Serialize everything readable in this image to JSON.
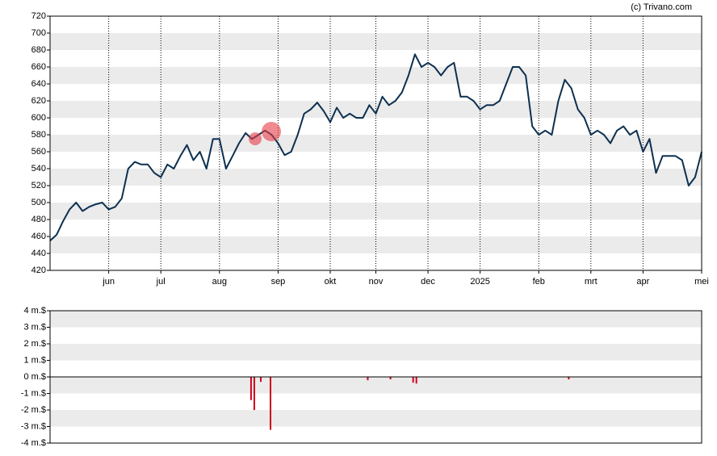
{
  "source": "(c) Trivano.com",
  "chart_data": [
    {
      "type": "line",
      "categories": [
        null,
        null,
        null,
        null,
        null,
        null,
        null,
        null,
        null,
        "jun",
        null,
        null,
        null,
        null,
        null,
        null,
        null,
        "jul",
        null,
        null,
        null,
        null,
        null,
        null,
        null,
        null,
        "aug",
        null,
        null,
        null,
        null,
        null,
        null,
        null,
        null,
        "sep",
        null,
        null,
        null,
        null,
        null,
        null,
        null,
        "okt",
        null,
        null,
        null,
        null,
        null,
        null,
        "nov",
        null,
        null,
        null,
        null,
        null,
        null,
        null,
        "dec",
        null,
        null,
        null,
        null,
        null,
        null,
        null,
        "2025",
        null,
        null,
        null,
        null,
        null,
        null,
        null,
        null,
        "feb",
        null,
        null,
        null,
        null,
        null,
        null,
        null,
        "mrt",
        null,
        null,
        null,
        null,
        null,
        null,
        null,
        "apr",
        null,
        null,
        null,
        null,
        null,
        null,
        null,
        null,
        "mei"
      ],
      "values": [
        455,
        462,
        478,
        492,
        500,
        490,
        495,
        498,
        500,
        492,
        495,
        505,
        540,
        548,
        545,
        545,
        535,
        530,
        545,
        540,
        555,
        568,
        550,
        560,
        540,
        575,
        575,
        540,
        555,
        570,
        582,
        575,
        580,
        585,
        580,
        570,
        556,
        560,
        580,
        605,
        610,
        618,
        608,
        595,
        612,
        600,
        605,
        600,
        600,
        615,
        605,
        625,
        615,
        620,
        630,
        650,
        675,
        660,
        665,
        660,
        650,
        660,
        665,
        625,
        625,
        620,
        610,
        615,
        615,
        620,
        640,
        660,
        660,
        650,
        590,
        580,
        585,
        580,
        620,
        645,
        635,
        610,
        600,
        580,
        585,
        580,
        570,
        585,
        590,
        580,
        585,
        560,
        575,
        535,
        555,
        555,
        555,
        550,
        520,
        530,
        560
      ],
      "color": "#0d3050",
      "ylim": [
        420,
        720
      ],
      "yticks": [
        420,
        440,
        460,
        480,
        500,
        520,
        540,
        560,
        580,
        600,
        620,
        640,
        660,
        680,
        700,
        720
      ]
    },
    {
      "type": "bar",
      "values": [
        null,
        null,
        null,
        null,
        null,
        null,
        null,
        null,
        null,
        null,
        null,
        null,
        null,
        null,
        null,
        null,
        null,
        null,
        null,
        null,
        null,
        null,
        null,
        null,
        null,
        null,
        null,
        null,
        null,
        null,
        null,
        null,
        null,
        null,
        null,
        null,
        null,
        null,
        null,
        null,
        null,
        null,
        null,
        null,
        null,
        null,
        null,
        null,
        null,
        null,
        null,
        null,
        null,
        null,
        null,
        null,
        null,
        null,
        null,
        null,
        null,
        null,
        -1.4,
        -2.0,
        null,
        -0.3,
        null,
        null,
        -3.2,
        null,
        null,
        null,
        null,
        null,
        null,
        null,
        null,
        null,
        null,
        null,
        null,
        null,
        null,
        null,
        null,
        null,
        null,
        null,
        null,
        null,
        null,
        null,
        null,
        null,
        null,
        null,
        null,
        null,
        -0.2,
        null,
        null,
        null,
        null,
        null,
        null,
        -0.15,
        null,
        null,
        null,
        null,
        null,
        null,
        -0.35,
        -0.4,
        null,
        null,
        null,
        null,
        null,
        null,
        null,
        null,
        null,
        null,
        null,
        null,
        null,
        null,
        null,
        null,
        null,
        null,
        null,
        null,
        null,
        null,
        null,
        null,
        null,
        null,
        null,
        null,
        null,
        null,
        null,
        null,
        null,
        null,
        null,
        null,
        null,
        null,
        null,
        null,
        null,
        null,
        null,
        null,
        null,
        null,
        -0.15,
        null,
        null,
        null,
        null,
        null,
        null,
        null,
        null,
        null,
        null,
        null,
        null,
        null,
        null,
        null,
        null,
        null,
        null,
        null,
        null,
        null,
        null,
        null,
        null,
        null,
        null,
        null,
        null,
        null,
        null,
        null,
        null,
        null,
        null,
        null,
        null,
        null,
        null,
        null,
        null,
        null
      ],
      "color": "#d0021b",
      "ylim": [
        -4,
        4
      ],
      "yticks": [
        {
          "value": -4,
          "label": "-4 m.$"
        },
        {
          "value": -3,
          "label": "-3 m.$"
        },
        {
          "value": -2,
          "label": "-2 m.$"
        },
        {
          "value": -1,
          "label": "-1 m.$"
        },
        {
          "value": 0,
          "label": "0 m.$"
        },
        {
          "value": 1,
          "label": "1 m.$"
        },
        {
          "value": 2,
          "label": "2 m.$"
        },
        {
          "value": 3,
          "label": "3 m.$"
        },
        {
          "value": 4,
          "label": "4 m.$"
        }
      ]
    }
  ]
}
